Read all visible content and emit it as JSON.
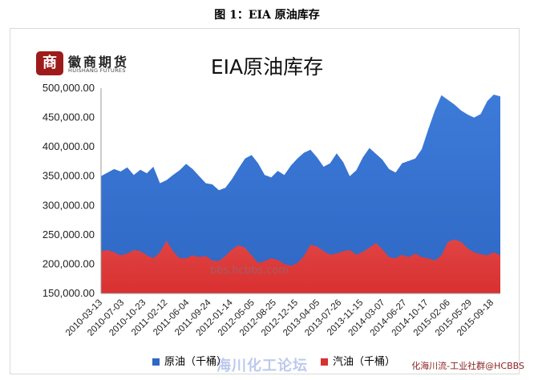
{
  "figure_title": "图 1：EIA 原油库存",
  "logo": {
    "name_cn": "徽商期货",
    "name_en": "HUISHANG FUTURES",
    "mark": "商"
  },
  "watermarks": {
    "center": "bbs.hcbbs.com",
    "footer": "海川化工论坛",
    "corner": "化海川流-工业社群@HCBBS"
  },
  "colors": {
    "crude": "#2f67c4",
    "crude_top": "#3d7bd9",
    "gasoline": "#d93030",
    "gasoline_top": "#e04444"
  },
  "chart_data": {
    "type": "area",
    "title": "EIA原油库存",
    "xlabel": "",
    "ylabel": "",
    "ylim": [
      150000,
      500000
    ],
    "yticks": [
      "150,000.00",
      "200,000.00",
      "250,000.00",
      "300,000.00",
      "350,000.00",
      "400,000.00",
      "450,000.00",
      "500,000.00"
    ],
    "x_tick_labels": [
      "2010-03-13",
      "2010-07-03",
      "2010-10-23",
      "2011-02-12",
      "2011-06-04",
      "2011-09-24",
      "2012-01-14",
      "2012-05-05",
      "2012-08-25",
      "2012-12-15",
      "2013-04-05",
      "2013-07-26",
      "2013-11-15",
      "2014-03-07",
      "2014-06-27",
      "2014-10-17",
      "2015-02-06",
      "2015-05-29",
      "2015-09-18"
    ],
    "legend": {
      "placement": "bottom"
    },
    "series": [
      {
        "name": "原油（千桶）",
        "values": [
          350000,
          356000,
          362000,
          358000,
          365000,
          352000,
          361000,
          355000,
          366000,
          338000,
          343000,
          352000,
          360000,
          371000,
          362000,
          350000,
          338000,
          336000,
          326000,
          330000,
          345000,
          363000,
          380000,
          386000,
          372000,
          352000,
          348000,
          359000,
          352000,
          368000,
          380000,
          390000,
          395000,
          382000,
          366000,
          372000,
          389000,
          374000,
          350000,
          360000,
          382000,
          398000,
          388000,
          378000,
          362000,
          356000,
          372000,
          376000,
          380000,
          396000,
          430000,
          462000,
          488000,
          480000,
          472000,
          462000,
          455000,
          450000,
          456000,
          478000,
          489000,
          486000
        ]
      },
      {
        "name": "汽油（千桶）",
        "values": [
          222000,
          224000,
          220000,
          215000,
          218000,
          224000,
          222000,
          215000,
          210000,
          220000,
          240000,
          222000,
          210000,
          210000,
          215000,
          212000,
          214000,
          206000,
          205000,
          214000,
          225000,
          232000,
          228000,
          215000,
          202000,
          205000,
          210000,
          207000,
          200000,
          197000,
          202000,
          214000,
          233000,
          230000,
          222000,
          216000,
          218000,
          222000,
          224000,
          216000,
          221000,
          228000,
          236000,
          225000,
          212000,
          210000,
          216000,
          212000,
          218000,
          212000,
          210000,
          206000,
          215000,
          238000,
          242000,
          238000,
          227000,
          220000,
          217000,
          215000,
          220000,
          215000
        ]
      }
    ]
  }
}
